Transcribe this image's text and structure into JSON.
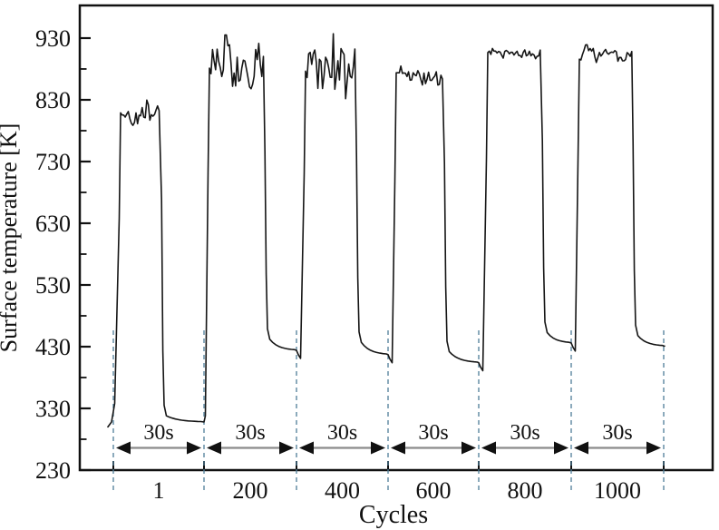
{
  "chart_data": {
    "type": "line",
    "title": "",
    "xlabel": "Cycles",
    "ylabel": "Surface temperature [K]",
    "ylim": [
      230,
      960
    ],
    "yticks": [
      230,
      330,
      430,
      530,
      630,
      730,
      830,
      930
    ],
    "grid": false,
    "legend": "none",
    "x_segment_labels": [
      "1",
      "200",
      "400",
      "600",
      "800",
      "1000"
    ],
    "duration_label": "30s",
    "series_color": "#151515",
    "dashed_boundary_color": "#4d7d98",
    "arrow_shaft_color": "#8a8a8a",
    "arrow_head_color": "#111111",
    "segments": [
      {
        "cycle_label": "1",
        "duration_s": 30,
        "rise_from_K": 300,
        "plateau_mean_K": 808,
        "plateau_noise_K": 13,
        "plateau_peak_K": 833,
        "fall_to_K": 313,
        "baseline_end_K": 308,
        "peak_frac": null
      },
      {
        "cycle_label": "200",
        "duration_s": 30,
        "rise_from_K": 308,
        "plateau_mean_K": 885,
        "plateau_noise_K": 32,
        "plateau_peak_K": 935,
        "fall_to_K": 437,
        "baseline_end_K": 424,
        "peak_frac": 0.3
      },
      {
        "cycle_label": "400",
        "duration_s": 30,
        "rise_from_K": 424,
        "plateau_mean_K": 880,
        "plateau_noise_K": 28,
        "plateau_peak_K": 937,
        "fall_to_K": 432,
        "baseline_end_K": 417,
        "peak_frac": 0.55
      },
      {
        "cycle_label": "600",
        "duration_s": 30,
        "rise_from_K": 417,
        "plateau_mean_K": 868,
        "plateau_noise_K": 11,
        "plateau_peak_K": 892,
        "fall_to_K": 417,
        "baseline_end_K": 404,
        "peak_frac": null
      },
      {
        "cycle_label": "800",
        "duration_s": 30,
        "rise_from_K": 404,
        "plateau_mean_K": 904,
        "plateau_noise_K": 10,
        "plateau_peak_K": 927,
        "fall_to_K": 448,
        "baseline_end_K": 436,
        "peak_frac": null
      },
      {
        "cycle_label": "1000",
        "duration_s": 30,
        "rise_from_K": 436,
        "plateau_mean_K": 903,
        "plateau_noise_K": 10,
        "plateau_peak_K": 926,
        "fall_to_K": 443,
        "baseline_end_K": 431,
        "peak_frac": null
      }
    ]
  }
}
